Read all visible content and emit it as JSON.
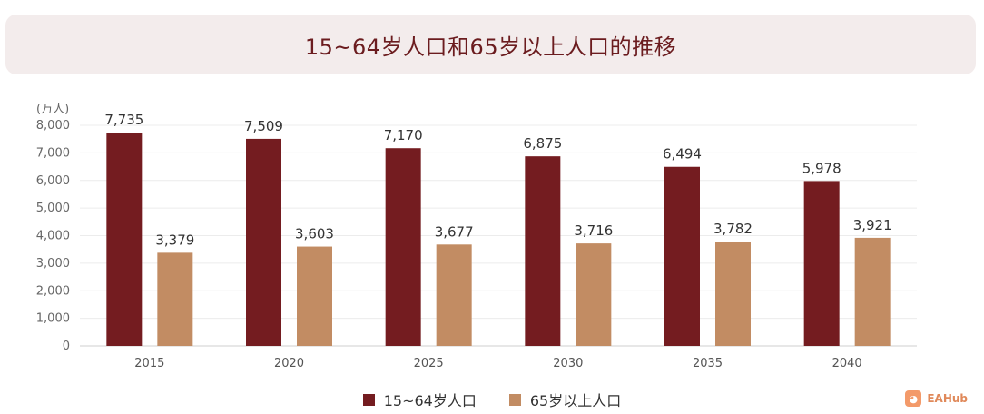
{
  "chart_data": {
    "type": "bar",
    "title": "15~64岁人口和65岁以上人口的推移",
    "unit_label": "(万人)",
    "categories": [
      "2015",
      "2020",
      "2025",
      "2030",
      "2035",
      "2040"
    ],
    "series": [
      {
        "name": "15~64岁人口",
        "color": "#741c20",
        "values": [
          7735,
          7509,
          7170,
          6875,
          6494,
          5978
        ],
        "labels": [
          "7,735",
          "7,509",
          "7,170",
          "6,875",
          "6,494",
          "5,978"
        ]
      },
      {
        "name": "65岁以上人口",
        "color": "#c28c63",
        "values": [
          3379,
          3603,
          3677,
          3716,
          3782,
          3921
        ],
        "labels": [
          "3,379",
          "3,603",
          "3,677",
          "3,716",
          "3,782",
          "3,921"
        ]
      }
    ],
    "yticks": [
      0,
      1000,
      2000,
      3000,
      4000,
      5000,
      6000,
      7000,
      8000
    ],
    "ytick_labels": [
      "0",
      "1,000",
      "2,000",
      "3,000",
      "4,000",
      "5,000",
      "6,000",
      "7,000",
      "8,000"
    ],
    "ylim": [
      0,
      8000
    ],
    "grid": true,
    "legend_position": "bottom"
  },
  "watermark": {
    "text": "EAHub",
    "icon": "eahub-logo-icon"
  }
}
